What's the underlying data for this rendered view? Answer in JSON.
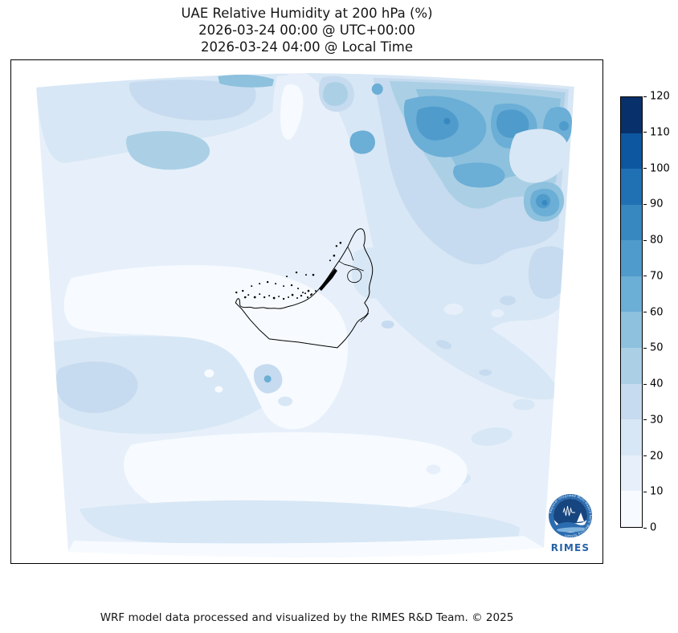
{
  "title": {
    "line1": "UAE Relative Humidity at 200 hPa (%)",
    "line2": "2026-03-24 00:00 @ UTC+00:00",
    "line3": "2026-03-24 04:00 @ Local Time"
  },
  "footer": {
    "credit": "WRF model data processed and visualized by the RIMES R&D Team. © 2025"
  },
  "colorbar": {
    "min": 0,
    "max": 120,
    "step": 10,
    "orientation": "vertical",
    "position": "right",
    "colors_top_to_bottom": [
      "#08306b",
      "#0d57a1",
      "#2070b4",
      "#3787c0",
      "#4f9bcb",
      "#6baed6",
      "#8dc1dd",
      "#abd0e6",
      "#c6dbef",
      "#d8e7f5",
      "#e7f0fa",
      "#f7fbff"
    ]
  },
  "logo": {
    "name": "RIMES",
    "ring_text": "Regional Integrated Multi-Hazard Early Warning System",
    "accent_color": "#2b6cb0",
    "dark_color": "#16457f",
    "text_color": "#2563a8"
  },
  "chart_data": {
    "type": "heatmap",
    "subtype": "filled_contour_weather_map",
    "title": "UAE Relative Humidity at 200 hPa (%)",
    "valid_time_utc": "2026-03-24 00:00 @ UTC+00:00",
    "valid_time_local": "2026-03-24 04:00 @ Local Time",
    "variable": "Relative Humidity",
    "pressure_level_hPa": 200,
    "units": "%",
    "colormap": "Blues",
    "contour_levels": [
      0,
      10,
      20,
      30,
      40,
      50,
      60,
      70,
      80,
      90,
      100,
      110,
      120
    ],
    "colorbar_range": [
      0,
      120
    ],
    "legend_position": "right",
    "grid": false,
    "region": "UAE and surrounding WRF model domain (trapezoidal projection boundary)",
    "overlay": "UAE coastline, islands and administrative boundaries in black",
    "field_pattern": {
      "northeast_quadrant": "broad moist plume, RH 30-70% with embedded cores of 70-90%",
      "top_center": "dry channel RH 0-20% cutting between two moist bands",
      "center_and_west": "large dry area RH 0-10% around and west of UAE",
      "west_midlatitude_band": "zonal band RH 20-40% with small 30-40% core",
      "south_of_uae": "mostly RH 0-20%, one small spot reaching 60-70%",
      "bottom_strip": "RH 10-30% band along southern edge"
    },
    "approx_grid_rh_percent": {
      "note": "coarse 5x5 sample read from shading, rows north to south, columns west to east",
      "rows": [
        [
          18,
          22,
          35,
          55,
          65
        ],
        [
          15,
          12,
          22,
          38,
          52
        ],
        [
          6,
          4,
          10,
          18,
          28
        ],
        [
          22,
          18,
          8,
          12,
          20
        ],
        [
          12,
          14,
          6,
          10,
          15
        ]
      ]
    },
    "local_max_spot": {
      "location": "south-southwest of UAE western border",
      "value_range_percent": "60-70"
    }
  }
}
